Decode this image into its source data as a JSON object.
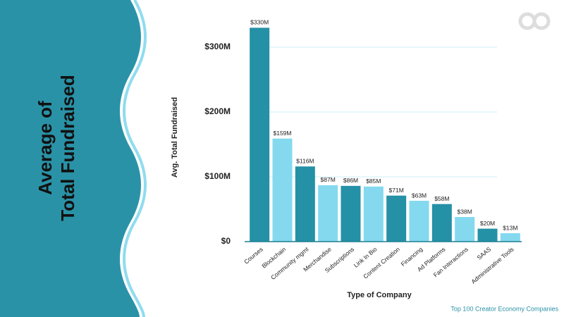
{
  "side_title": [
    "Average of",
    "Total Fundraised"
  ],
  "footer": "Top 100 Creator Economy Companies",
  "chart_data": {
    "type": "bar",
    "y_label": "Avg. Total Fundraised",
    "x_label": "Type of Company",
    "categories": [
      "Courses",
      "Blockchain",
      "Community mgmt",
      "Merchandise",
      "Subscriptions",
      "Link In Bio",
      "Content Creation",
      "Financing",
      "Ad Platforms",
      "Fan Interactions",
      "SAAS",
      "Administrative Tools"
    ],
    "values": [
      330,
      159,
      116,
      87,
      86,
      85,
      71,
      63,
      58,
      38,
      20,
      13
    ],
    "value_labels": [
      "$330M",
      "$159M",
      "$116M",
      "$87M",
      "$86M",
      "$85M",
      "$71M",
      "$63M",
      "$58M",
      "$38M",
      "$20M",
      "$13M"
    ],
    "colors": [
      "#2491a6",
      "#84d9ef",
      "#2491a6",
      "#84d9ef",
      "#2491a6",
      "#84d9ef",
      "#2491a6",
      "#84d9ef",
      "#2491a6",
      "#84d9ef",
      "#2491a6",
      "#84d9ef"
    ],
    "ylim": [
      0,
      350
    ],
    "yticks": [
      {
        "value": 0,
        "label": "$0"
      },
      {
        "value": 100,
        "label": "$100M"
      },
      {
        "value": 200,
        "label": "$200M"
      },
      {
        "value": 300,
        "label": "$300M"
      }
    ],
    "grid": true
  }
}
